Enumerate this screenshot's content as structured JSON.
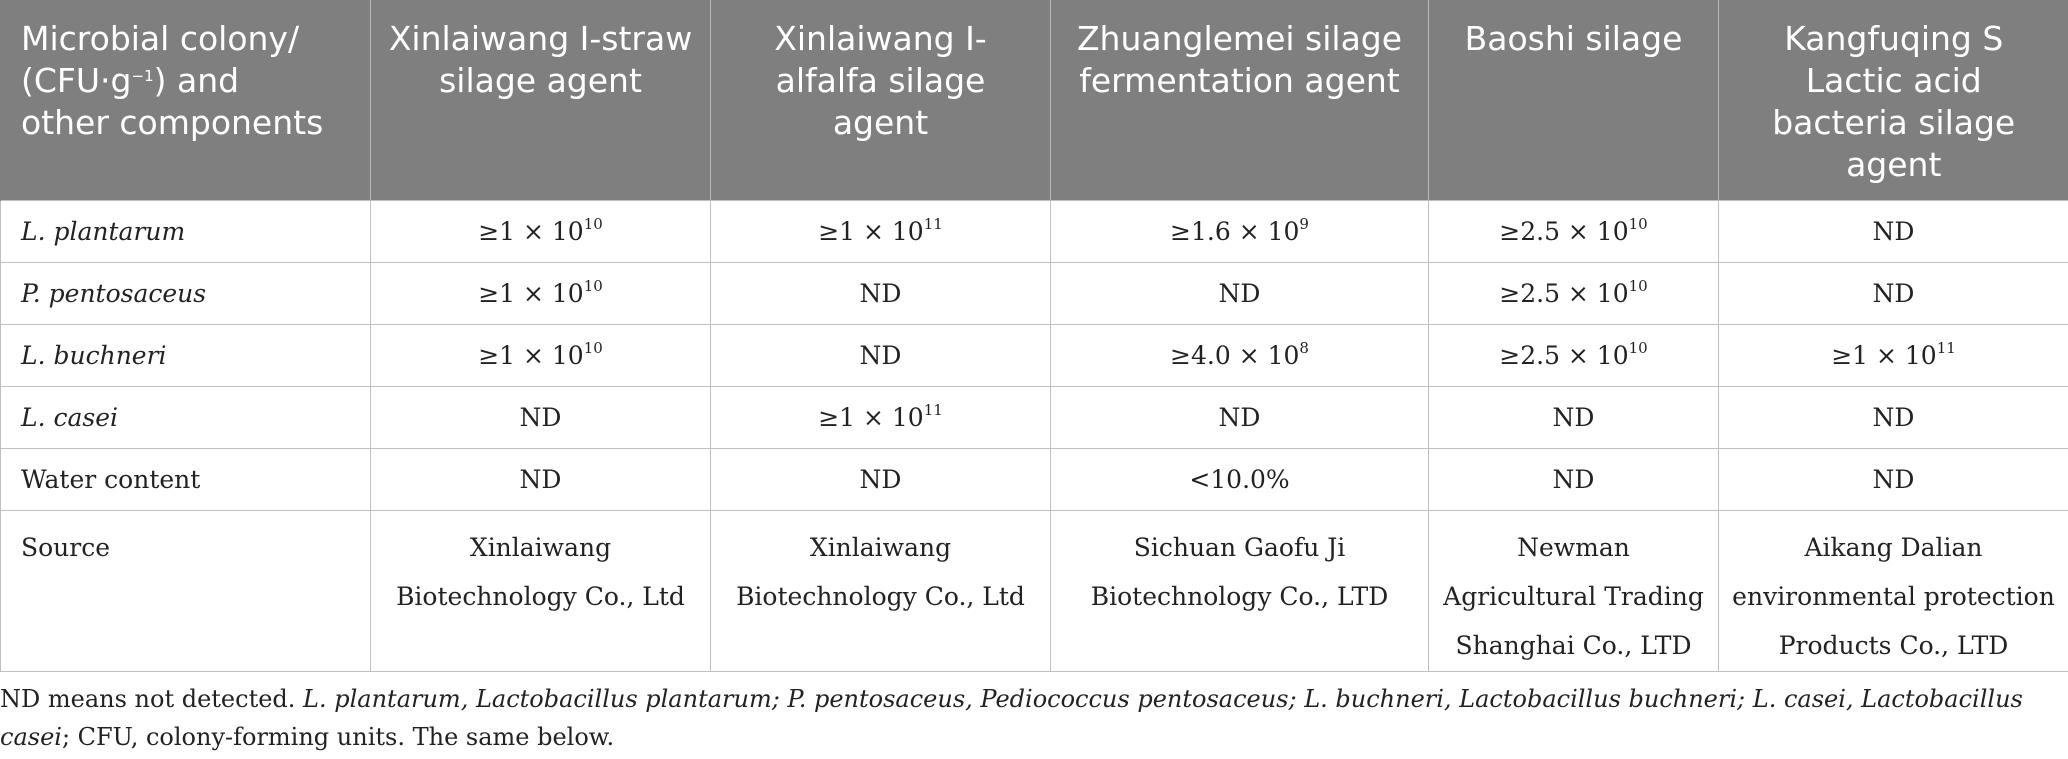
{
  "header": {
    "col0": "Microbial colony/(CFU·g−1) and other components",
    "col0_line1": "Microbial colony/",
    "col0_line2a": "(CFU·g",
    "col0_sup": "−1",
    "col0_line2b": ") and",
    "col0_line3": "other components",
    "col1": "Xinlaiwang I-straw silage agent",
    "col2": "Xinlaiwang I-alfalfa silage agent",
    "col3": "Zhuanglemei silage fermentation agent",
    "col4": "Baoshi silage",
    "col5": "Kangfuqing S Lactic acid bacteria silage agent"
  },
  "rows": [
    {
      "label": "L. plantarum",
      "cells": [
        {
          "base": "≥1 × 10",
          "exp": "10"
        },
        {
          "base": "≥1 × 10",
          "exp": "11"
        },
        {
          "base": "≥1.6 × 10",
          "exp": "9"
        },
        {
          "base": "≥2.5 × 10",
          "exp": "10"
        },
        {
          "base": "ND",
          "exp": ""
        }
      ]
    },
    {
      "label": "P. pentosaceus",
      "cells": [
        {
          "base": "≥1 × 10",
          "exp": "10"
        },
        {
          "base": "ND",
          "exp": ""
        },
        {
          "base": "ND",
          "exp": ""
        },
        {
          "base": "≥2.5 × 10",
          "exp": "10"
        },
        {
          "base": "ND",
          "exp": ""
        }
      ]
    },
    {
      "label": "L. buchneri",
      "cells": [
        {
          "base": "≥1 × 10",
          "exp": "10"
        },
        {
          "base": "ND",
          "exp": ""
        },
        {
          "base": "≥4.0 × 10",
          "exp": "8"
        },
        {
          "base": "≥2.5 × 10",
          "exp": "10"
        },
        {
          "base": "≥1 × 10",
          "exp": "11"
        }
      ]
    },
    {
      "label": "L. casei",
      "cells": [
        {
          "base": "ND",
          "exp": ""
        },
        {
          "base": "≥1 × 10",
          "exp": "11"
        },
        {
          "base": "ND",
          "exp": ""
        },
        {
          "base": "ND",
          "exp": ""
        },
        {
          "base": "ND",
          "exp": ""
        }
      ]
    },
    {
      "label": "Water content",
      "cells": [
        {
          "base": "ND",
          "exp": ""
        },
        {
          "base": "ND",
          "exp": ""
        },
        {
          "base": "<10.0%",
          "exp": ""
        },
        {
          "base": "ND",
          "exp": ""
        },
        {
          "base": "ND",
          "exp": ""
        }
      ]
    }
  ],
  "source_row": {
    "label": "Source",
    "cells": [
      [
        "Xinlaiwang",
        "Biotechnology Co., Ltd"
      ],
      [
        "Xinlaiwang",
        "Biotechnology Co., Ltd"
      ],
      [
        "Sichuan Gaofu Ji",
        "Biotechnology Co., LTD"
      ],
      [
        "Newman",
        "Agricultural Trading",
        "Shanghai Co., LTD"
      ],
      [
        "Aikang Dalian",
        "environmental protection",
        "Products Co., LTD"
      ]
    ]
  },
  "footnote": {
    "p1": "ND means not detected. ",
    "i1": "L. plantarum, Lactobacillus plantarum; P. pentosaceus, Pediococcus pentosaceus; L. buchneri, Lactobacillus buchneri; L. casei, Lactobacillus casei",
    "p2": "; CFU, colony-forming units. The same below."
  }
}
